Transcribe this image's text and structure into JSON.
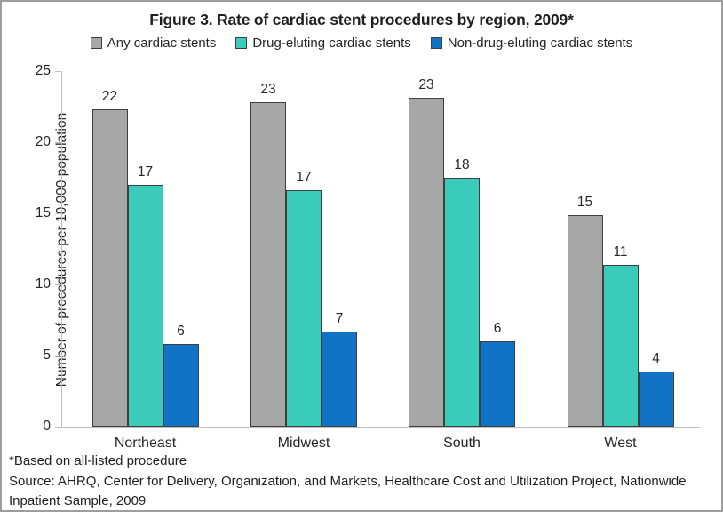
{
  "title": "Figure 3. Rate of cardiac stent procedures by region, 2009*",
  "footnotes": {
    "lines": [
      "*Based on all-listed procedure",
      "Source: AHRQ, Center for Delivery, Organization, and Markets, Healthcare Cost and Utilization Project, Nationwide",
      "Inpatient Sample, 2009"
    ]
  },
  "colors": {
    "axis": "#bfbfbf",
    "bar_border": "#3f3f3f",
    "text": "#262626",
    "frame_border": "#9d9d9d"
  },
  "chart_data": {
    "type": "bar",
    "title": "Figure 3. Rate of cardiac stent procedures by region, 2009*",
    "categories": [
      "Northeast",
      "Midwest",
      "South",
      "West"
    ],
    "series": [
      {
        "name": "Any cardiac stents",
        "color": "#a7a7a7",
        "values": [
          22.3,
          22.8,
          23.1,
          14.9
        ],
        "data_labels": [
          "22",
          "23",
          "23",
          "15"
        ]
      },
      {
        "name": "Drug-eluting cardiac stents",
        "color": "#3bcbbb",
        "values": [
          17.0,
          16.6,
          17.5,
          11.4
        ],
        "data_labels": [
          "17",
          "17",
          "18",
          "11"
        ]
      },
      {
        "name": "Non-drug-eluting cardiac stents",
        "color": "#1173c5",
        "values": [
          5.8,
          6.7,
          6.0,
          3.9
        ],
        "data_labels": [
          "6",
          "7",
          "6",
          "4"
        ]
      }
    ],
    "xlabel": "",
    "ylabel": "Number of procedures per 10,000 population",
    "ylim": [
      0,
      25
    ],
    "yticks": [
      0,
      5,
      10,
      15,
      20,
      25
    ],
    "grid": false,
    "legend_position": "top"
  }
}
